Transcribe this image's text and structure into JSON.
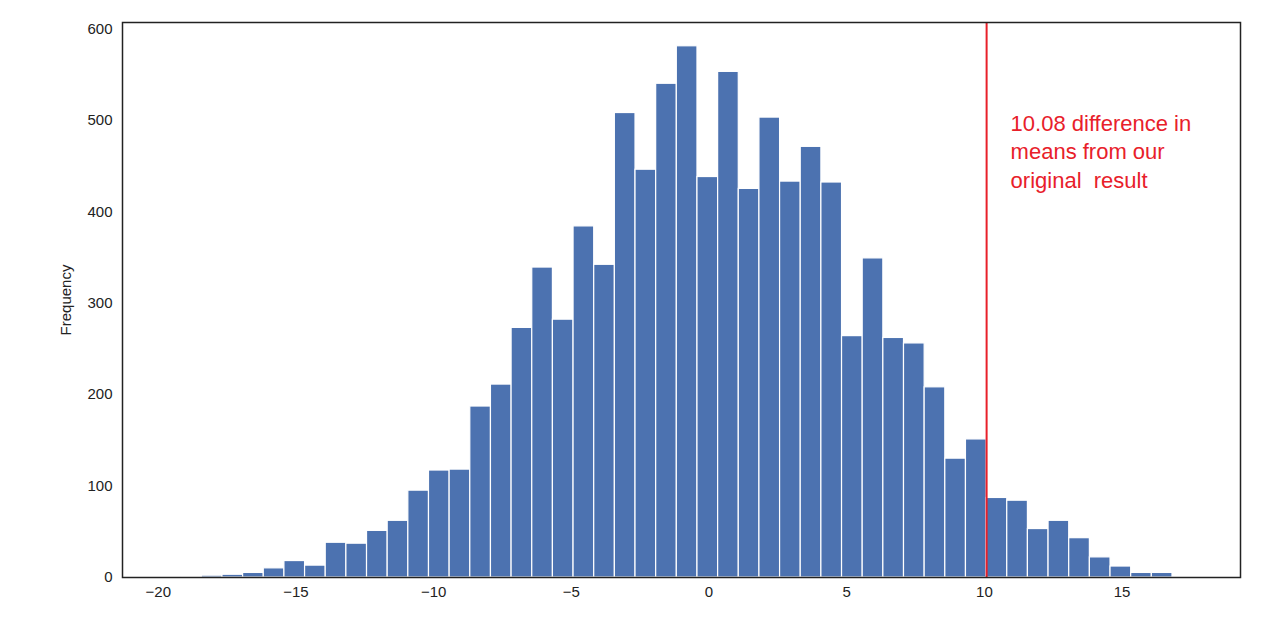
{
  "chart_data": {
    "type": "histogram",
    "ylabel": "Frequency",
    "color": "#4c72b0",
    "bins": [
      -20.67,
      -19.92,
      -19.17,
      -18.42,
      -17.67,
      -16.92,
      -16.17,
      -15.42,
      -14.67,
      -13.92,
      -13.17,
      -12.42,
      -11.67,
      -10.92,
      -10.17,
      -9.42,
      -8.67,
      -7.92,
      -7.17,
      -6.42,
      -5.67,
      -4.92,
      -4.17,
      -3.42,
      -2.67,
      -1.92,
      -1.17,
      -0.42,
      0.33,
      1.08,
      1.83,
      2.58,
      3.33,
      4.08,
      4.83,
      5.58,
      6.33,
      7.08,
      7.83,
      8.58,
      9.33,
      10.08,
      10.83,
      11.58,
      12.33,
      13.08,
      13.83,
      14.58,
      15.33,
      16.08,
      16.83
    ],
    "counts": [
      1,
      0,
      1,
      2,
      3,
      5,
      10,
      18,
      13,
      38,
      37,
      51,
      62,
      95,
      117,
      118,
      187,
      211,
      273,
      339,
      282,
      384,
      342,
      508,
      446,
      540,
      581,
      438,
      553,
      425,
      503,
      433,
      471,
      432,
      264,
      349,
      262,
      256,
      208,
      130,
      151,
      87,
      84,
      53,
      62,
      43,
      22,
      12,
      5,
      5
    ],
    "xlim": [
      -21.3,
      19.3
    ],
    "ylim": [
      0,
      607
    ],
    "xticks": [
      -20,
      -15,
      -10,
      -5,
      0,
      5,
      10,
      15
    ],
    "yticks": [
      0,
      100,
      200,
      300,
      400,
      500,
      600
    ],
    "grid": false,
    "annotations": [
      {
        "type": "vline",
        "x": 10.08,
        "color": "#e8202a",
        "text": "10.08 difference in\nmeans from our\noriginal  result"
      }
    ]
  }
}
